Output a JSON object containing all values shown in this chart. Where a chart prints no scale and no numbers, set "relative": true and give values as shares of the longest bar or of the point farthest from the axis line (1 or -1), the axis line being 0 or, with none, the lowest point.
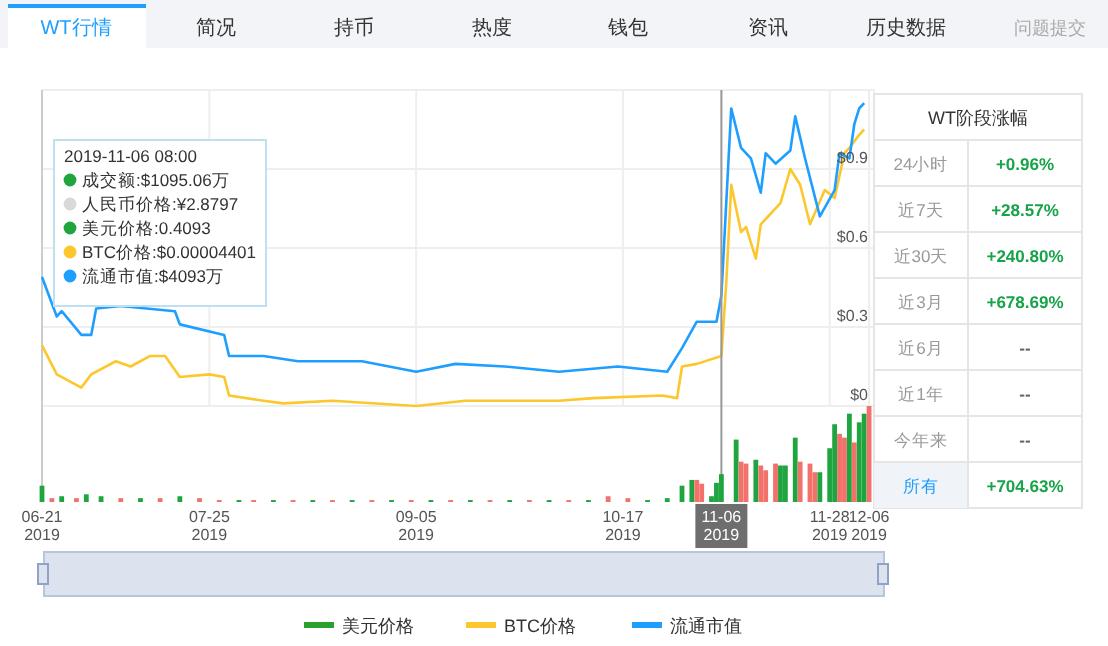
{
  "chart_data": [
    {
      "type": "other",
      "annotations": [
        "WT行情",
        "简况",
        "持币",
        "热度",
        "钱包",
        "资讯",
        "历史数据",
        "问题提交"
      ]
    },
    {
      "type": "line",
      "xlim": [
        "2019-06-21",
        "2019-12-07"
      ],
      "ylim": [
        0,
        1.2
      ],
      "xticks": [
        {
          "value": "2019-06-21",
          "label": null
        },
        {
          "value": "2019-07-25",
          "label": null
        },
        {
          "value": "2019-09-05",
          "label": null
        },
        {
          "value": "2019-10-17",
          "label": null
        },
        {
          "value": "2019-11-06",
          "label": null
        },
        {
          "value": "2019-11-28",
          "label": null
        },
        {
          "value": "2019-12-06",
          "label": null
        }
      ],
      "yticks": [
        {
          "value": 0,
          "label": "$0"
        },
        {
          "value": 0.3,
          "label": "$0.3"
        },
        {
          "value": 0.6,
          "label": "$0.6"
        },
        {
          "value": 0.9,
          "label": "$0.9"
        }
      ],
      "tick_labels": "y",
      "grid": true,
      "legend": "bottom",
      "marker": "none",
      "line_style": "solid",
      "ref_lines": [
        {
          "axis": "x",
          "value": "2019-11-06",
          "label": null,
          "color": "#999999"
        }
      ],
      "annotations": [
        "2019-11-06 08:00",
        "成交额:$1095.06万",
        "人民币价格:¥2.8797",
        "美元价格:0.4093",
        "BTC价格:$0.00004401",
        "流通市值:$4093万"
      ],
      "series": [
        {
          "name": "美元价格",
          "color": "#2ca02c"
        },
        {
          "name": "BTC价格",
          "color": "#fcc72c",
          "x": [
            "2019-06-21",
            "2019-06-24",
            "2019-06-29",
            "2019-07-01",
            "2019-07-06",
            "2019-07-09",
            "2019-07-13",
            "2019-07-16",
            "2019-07-19",
            "2019-07-25",
            "2019-07-28",
            "2019-07-29",
            "2019-08-05",
            "2019-08-09",
            "2019-08-19",
            "2019-09-05",
            "2019-09-15",
            "2019-10-04",
            "2019-10-11",
            "2019-10-25",
            "2019-10-28",
            "2019-10-29",
            "2019-11-01",
            "2019-11-06",
            "2019-11-07",
            "2019-11-08",
            "2019-11-10",
            "2019-11-11",
            "2019-11-13",
            "2019-11-14",
            "2019-11-18",
            "2019-11-20",
            "2019-11-22",
            "2019-11-24",
            "2019-11-27",
            "2019-11-29",
            "2019-12-01",
            "2019-12-02",
            "2019-12-04",
            "2019-12-05"
          ],
          "values": [
            0.23,
            0.12,
            0.07,
            0.12,
            0.17,
            0.15,
            0.19,
            0.19,
            0.11,
            0.12,
            0.11,
            0.04,
            0.02,
            0.01,
            0.02,
            0.0,
            0.02,
            0.02,
            0.03,
            0.04,
            0.03,
            0.15,
            0.16,
            0.19,
            0.47,
            0.84,
            0.66,
            0.68,
            0.56,
            0.69,
            0.77,
            0.9,
            0.84,
            0.69,
            0.82,
            0.79,
            0.96,
            0.98,
            1.03,
            1.05
          ]
        },
        {
          "name": "流通市值",
          "color": "#1e9fff",
          "x": [
            "2019-06-21",
            "2019-06-24",
            "2019-06-25",
            "2019-06-29",
            "2019-07-01",
            "2019-07-02",
            "2019-07-07",
            "2019-07-18",
            "2019-07-19",
            "2019-07-28",
            "2019-07-29",
            "2019-08-05",
            "2019-08-12",
            "2019-08-25",
            "2019-09-05",
            "2019-09-13",
            "2019-09-23",
            "2019-10-04",
            "2019-10-16",
            "2019-10-26",
            "2019-10-29",
            "2019-11-01",
            "2019-11-05",
            "2019-11-06",
            "2019-11-08",
            "2019-11-10",
            "2019-11-12",
            "2019-11-14",
            "2019-11-15",
            "2019-11-17",
            "2019-11-20",
            "2019-11-21",
            "2019-11-23",
            "2019-11-26",
            "2019-11-29",
            "2019-11-30",
            "2019-12-02",
            "2019-12-03",
            "2019-12-04",
            "2019-12-05"
          ],
          "values": [
            0.49,
            0.34,
            0.36,
            0.27,
            0.27,
            0.37,
            0.38,
            0.36,
            0.31,
            0.27,
            0.19,
            0.19,
            0.17,
            0.17,
            0.13,
            0.16,
            0.15,
            0.13,
            0.15,
            0.13,
            0.22,
            0.32,
            0.32,
            0.42,
            1.13,
            0.98,
            0.94,
            0.81,
            0.96,
            0.92,
            0.97,
            1.1,
            0.94,
            0.72,
            0.82,
            0.96,
            0.94,
            1.07,
            1.13,
            1.15
          ]
        }
      ]
    },
    {
      "type": "bar",
      "relative": true,
      "tick_labels": "x",
      "xlim": [
        "2019-06-21",
        "2019-12-07"
      ],
      "xticks": [
        {
          "value": "2019-06-21",
          "label": "06-21\n2019"
        },
        {
          "value": "2019-07-25",
          "label": "07-25\n2019"
        },
        {
          "value": "2019-09-05",
          "label": "09-05\n2019"
        },
        {
          "value": "2019-10-17",
          "label": "10-17\n2019"
        },
        {
          "value": "2019-11-06",
          "label": "11-06\n2019"
        },
        {
          "value": "2019-11-28",
          "label": "11-28\n2019"
        },
        {
          "value": "2019-12-06",
          "label": "12-06\n2019"
        }
      ],
      "x": [
        "2019-06-21",
        "2019-06-23",
        "2019-06-25",
        "2019-06-28",
        "2019-06-30",
        "2019-07-03",
        "2019-07-07",
        "2019-07-11",
        "2019-07-15",
        "2019-07-19",
        "2019-07-23",
        "2019-07-27",
        "2019-07-31",
        "2019-08-03",
        "2019-08-07",
        "2019-08-11",
        "2019-08-15",
        "2019-08-19",
        "2019-08-23",
        "2019-08-27",
        "2019-08-31",
        "2019-09-04",
        "2019-09-08",
        "2019-09-12",
        "2019-09-16",
        "2019-09-20",
        "2019-09-24",
        "2019-09-28",
        "2019-10-02",
        "2019-10-06",
        "2019-10-10",
        "2019-10-14",
        "2019-10-18",
        "2019-10-22",
        "2019-10-26",
        "2019-10-29",
        "2019-10-31",
        "2019-11-01",
        "2019-11-02",
        "2019-11-04",
        "2019-11-05",
        "2019-11-06",
        "2019-11-09",
        "2019-11-10",
        "2019-11-11",
        "2019-11-13",
        "2019-11-14",
        "2019-11-15",
        "2019-11-17",
        "2019-11-18",
        "2019-11-19",
        "2019-11-21",
        "2019-11-22",
        "2019-11-24",
        "2019-11-25",
        "2019-11-26",
        "2019-11-28",
        "2019-11-29",
        "2019-11-30",
        "2019-12-01",
        "2019-12-02",
        "2019-12-03",
        "2019-12-04",
        "2019-12-05",
        "2019-12-06"
      ],
      "values": [
        0.17,
        0.04,
        0.06,
        0.04,
        0.08,
        0.06,
        0.04,
        0.04,
        0.04,
        0.06,
        0.04,
        0.02,
        0.02,
        0.02,
        0.02,
        0.02,
        0.02,
        0.02,
        0.02,
        0.02,
        0.02,
        0.02,
        0.02,
        0.02,
        0.02,
        0.02,
        0.02,
        0.02,
        0.02,
        0.02,
        0.02,
        0.06,
        0.04,
        0.02,
        0.04,
        0.17,
        0.23,
        0.23,
        0.19,
        0.06,
        0.2,
        0.29,
        0.65,
        0.42,
        0.4,
        0.44,
        0.38,
        0.33,
        0.4,
        0.38,
        0.38,
        0.67,
        0.42,
        0.4,
        0.31,
        0.31,
        0.56,
        0.81,
        0.71,
        0.67,
        0.92,
        0.62,
        0.83,
        0.92,
        1
      ],
      "colors": [
        "#1fa53f",
        "#f2716b",
        "#1fa53f",
        "#f2716b",
        "#1fa53f",
        "#1fa53f",
        "#f2716b",
        "#1fa53f",
        "#f2716b",
        "#1fa53f",
        "#f2716b",
        "#f2716b",
        "#1fa53f",
        "#f2716b",
        "#1fa53f",
        "#f2716b",
        "#1fa53f",
        "#f2716b",
        "#1fa53f",
        "#f2716b",
        "#1fa53f",
        "#f2716b",
        "#1fa53f",
        "#f2716b",
        "#1fa53f",
        "#f2716b",
        "#1fa53f",
        "#f2716b",
        "#1fa53f",
        "#f2716b",
        "#1fa53f",
        "#f2716b",
        "#f2716b",
        "#1fa53f",
        "#1fa53f",
        "#1fa53f",
        "#1fa53f",
        "#f2716b",
        "#f2716b",
        "#1fa53f",
        "#1fa53f",
        "#1fa53f",
        "#1fa53f",
        "#f2716b",
        "#f2716b",
        "#1fa53f",
        "#f2716b",
        "#f2716b",
        "#f2716b",
        "#1fa53f",
        "#1fa53f",
        "#1fa53f",
        "#f2716b",
        "#f2716b",
        "#f2716b",
        "#1fa53f",
        "#1fa53f",
        "#1fa53f",
        "#f2716b",
        "#f2716b",
        "#1fa53f",
        "#f2716b",
        "#1fa53f",
        "#1fa53f",
        "#f2716b"
      ]
    },
    {
      "type": "other",
      "title": "WT阶段涨幅",
      "annotations": [
        "24小时",
        "+0.96%",
        "近7天",
        "+28.57%",
        "近30天",
        "+240.80%",
        "近3月",
        "+678.69%",
        "近6月",
        "--",
        "近1年",
        "--",
        "今年来",
        "--",
        "所有",
        "+704.63%"
      ]
    }
  ]
}
